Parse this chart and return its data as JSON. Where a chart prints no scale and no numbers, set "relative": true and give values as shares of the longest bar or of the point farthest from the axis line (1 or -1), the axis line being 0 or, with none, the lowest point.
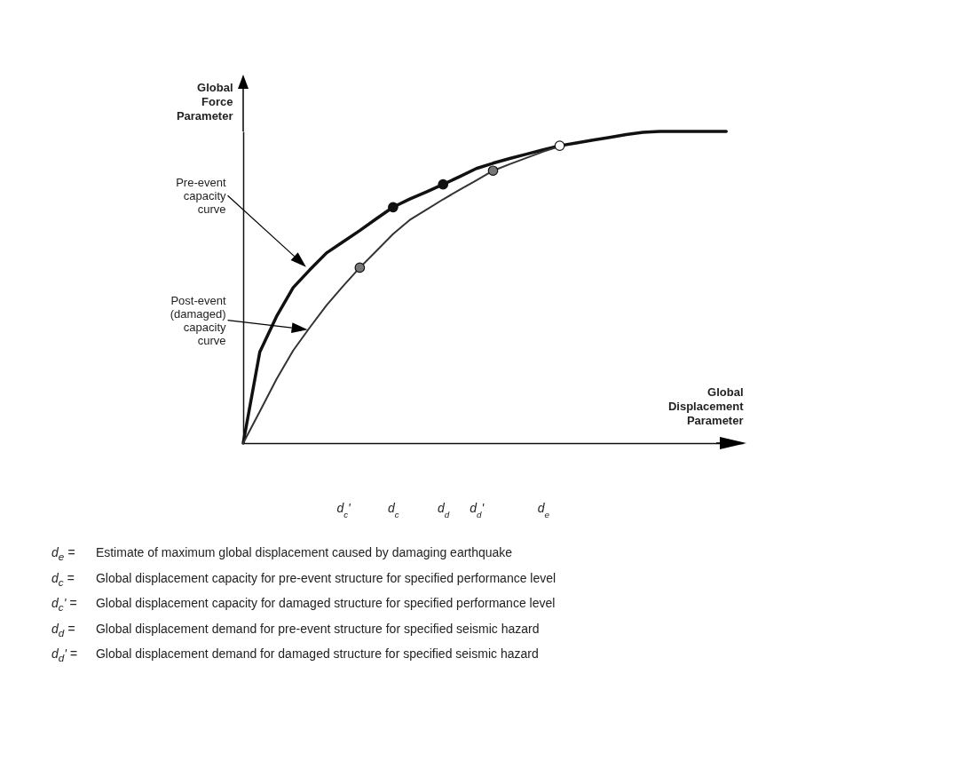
{
  "chart_data": {
    "type": "line",
    "relative": true,
    "xlabel": "Global Displacement Parameter",
    "ylabel": "Global Force Parameter",
    "categories": [
      null,
      null,
      null,
      null,
      null,
      null,
      "d$_{c}$'",
      null,
      null,
      "d$_{c}$",
      null,
      null,
      "d$_{d}$",
      null,
      "d$_{d}$'",
      null,
      null,
      null,
      "d$_{e}$",
      null,
      null,
      null,
      null,
      null,
      null,
      null,
      null,
      null,
      null,
      null,
      null
    ],
    "series": [
      {
        "name": "Pre-event capacity curve",
        "color": "#111111",
        "values": [
          0,
          0.293,
          0.406,
          0.499,
          0.556,
          0.61,
          0.646,
          0.682,
          0.72,
          0.757,
          0.783,
          0.806,
          0.83,
          0.855,
          0.881,
          0.898,
          0.913,
          0.927,
          0.941,
          0.954,
          0.963,
          0.972,
          0.981,
          0.99,
          0.997,
          1,
          1,
          1,
          1,
          1,
          null
        ]
      },
      {
        "name": "Post-event (damaged) capacity curve",
        "color": "#333333",
        "values": [
          0,
          0.102,
          0.205,
          0.297,
          0.371,
          0.442,
          0.504,
          0.563,
          0.617,
          0.671,
          0.716,
          0.749,
          0.782,
          0.813,
          0.843,
          0.874,
          0.895,
          0.915,
          0.935,
          0.952,
          null,
          null,
          null,
          null,
          null,
          null,
          null,
          null,
          null,
          null,
          null
        ]
      },
      {
        "type": "scatter",
        "color": "#111111",
        "values": [
          null,
          null,
          null,
          null,
          null,
          null,
          null,
          null,
          null,
          0.757,
          null,
          null,
          0.83,
          null,
          null,
          null,
          null,
          null,
          null,
          null,
          null,
          null,
          null,
          null,
          null,
          null,
          null,
          null,
          null,
          null,
          null
        ]
      },
      {
        "type": "scatter",
        "color": "#ffffff",
        "values": [
          null,
          null,
          null,
          null,
          null,
          null,
          null,
          null,
          null,
          null,
          null,
          null,
          null,
          null,
          null,
          null,
          null,
          null,
          null,
          0.954,
          null,
          null,
          null,
          null,
          null,
          null,
          null,
          null,
          null,
          null,
          null
        ]
      },
      {
        "type": "scatter",
        "color": "#777777",
        "values": [
          null,
          null,
          null,
          null,
          null,
          null,
          null,
          0.563,
          null,
          null,
          null,
          null,
          null,
          null,
          null,
          0.874,
          null,
          null,
          null,
          null,
          null,
          null,
          null,
          null,
          null,
          null,
          null,
          null,
          null,
          null,
          null
        ]
      }
    ],
    "grid": false,
    "legend": false,
    "annotations": [
      "d$_{e}$ = Estimate of maximum global displacement caused by damaging earthquake",
      "d$_{c}$ = Global displacement capacity for pre-event structure for specified performance level",
      "d$_{c}$' = Global displacement capacity for damaged structure for specified performance level",
      "d$_{d}$ = Global displacement demand for pre-event structure for specified seismic hazard",
      "d$_{d}$' = Global displacement demand for damaged structure for specified seismic hazard"
    ]
  }
}
